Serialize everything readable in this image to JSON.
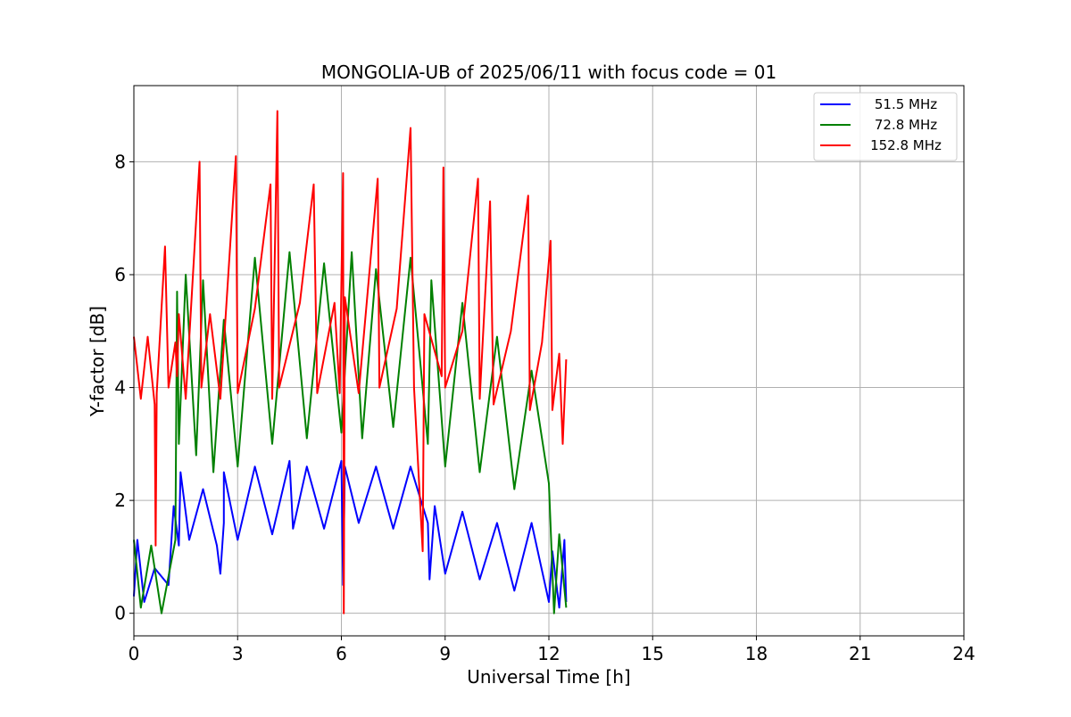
{
  "chart_data": {
    "type": "line",
    "title": "MONGOLIA-UB of 2025/06/11 with focus code = 01",
    "xlabel": "Universal Time [h]",
    "ylabel": "Y-factor [dB]",
    "xlim": [
      0,
      24
    ],
    "ylim": [
      -0.4,
      9.35
    ],
    "xticks": [
      0,
      3,
      6,
      9,
      12,
      15,
      18,
      21,
      24
    ],
    "yticks": [
      0,
      2,
      4,
      6,
      8
    ],
    "grid": true,
    "legend_position": "top-right",
    "series": [
      {
        "name": "51.5 MHz",
        "color": "#0000ff",
        "points": [
          [
            0.0,
            0.3
          ],
          [
            0.1,
            1.3
          ],
          [
            0.3,
            0.2
          ],
          [
            0.6,
            0.8
          ],
          [
            1.0,
            0.5
          ],
          [
            1.15,
            1.9
          ],
          [
            1.3,
            1.2
          ],
          [
            1.35,
            2.5
          ],
          [
            1.6,
            1.3
          ],
          [
            2.0,
            2.2
          ],
          [
            2.4,
            1.2
          ],
          [
            2.5,
            0.7
          ],
          [
            2.6,
            1.6
          ],
          [
            2.6,
            2.5
          ],
          [
            3.0,
            1.3
          ],
          [
            3.5,
            2.6
          ],
          [
            4.0,
            1.4
          ],
          [
            4.5,
            2.7
          ],
          [
            4.6,
            1.5
          ],
          [
            5.0,
            2.6
          ],
          [
            5.5,
            1.5
          ],
          [
            6.0,
            2.7
          ],
          [
            6.05,
            0.5
          ],
          [
            6.1,
            2.6
          ],
          [
            6.5,
            1.6
          ],
          [
            7.0,
            2.6
          ],
          [
            7.5,
            1.5
          ],
          [
            8.0,
            2.6
          ],
          [
            8.5,
            1.6
          ],
          [
            8.55,
            0.6
          ],
          [
            8.7,
            1.9
          ],
          [
            9.0,
            0.7
          ],
          [
            9.5,
            1.8
          ],
          [
            10.0,
            0.6
          ],
          [
            10.5,
            1.6
          ],
          [
            11.0,
            0.4
          ],
          [
            11.5,
            1.6
          ],
          [
            12.0,
            0.2
          ],
          [
            12.1,
            1.1
          ],
          [
            12.3,
            0.1
          ],
          [
            12.45,
            1.3
          ],
          [
            12.5,
            0.2
          ]
        ]
      },
      {
        "name": "72.8 MHz",
        "color": "#008000",
        "points": [
          [
            0.0,
            1.3
          ],
          [
            0.2,
            0.1
          ],
          [
            0.5,
            1.2
          ],
          [
            0.8,
            0.0
          ],
          [
            1.2,
            1.3
          ],
          [
            1.25,
            5.7
          ],
          [
            1.3,
            3.0
          ],
          [
            1.5,
            6.0
          ],
          [
            1.8,
            2.8
          ],
          [
            2.0,
            5.9
          ],
          [
            2.3,
            2.5
          ],
          [
            2.6,
            5.2
          ],
          [
            3.0,
            2.6
          ],
          [
            3.5,
            6.3
          ],
          [
            4.0,
            3.0
          ],
          [
            4.5,
            6.4
          ],
          [
            5.0,
            3.1
          ],
          [
            5.5,
            6.2
          ],
          [
            6.0,
            3.2
          ],
          [
            6.3,
            6.4
          ],
          [
            6.6,
            3.1
          ],
          [
            7.0,
            6.1
          ],
          [
            7.5,
            3.3
          ],
          [
            8.0,
            6.3
          ],
          [
            8.5,
            3.0
          ],
          [
            8.6,
            5.9
          ],
          [
            9.0,
            2.6
          ],
          [
            9.5,
            5.5
          ],
          [
            10.0,
            2.5
          ],
          [
            10.5,
            4.9
          ],
          [
            11.0,
            2.2
          ],
          [
            11.5,
            4.3
          ],
          [
            12.0,
            2.3
          ],
          [
            12.15,
            0.0
          ],
          [
            12.3,
            1.4
          ],
          [
            12.5,
            0.1
          ]
        ]
      },
      {
        "name": "152.8 MHz",
        "color": "#ff0000",
        "points": [
          [
            0.0,
            4.9
          ],
          [
            0.2,
            3.8
          ],
          [
            0.4,
            4.9
          ],
          [
            0.6,
            3.7
          ],
          [
            0.63,
            1.2
          ],
          [
            0.66,
            3.9
          ],
          [
            0.9,
            6.5
          ],
          [
            1.0,
            4.0
          ],
          [
            1.2,
            4.8
          ],
          [
            1.25,
            4.2
          ],
          [
            1.3,
            5.3
          ],
          [
            1.5,
            3.8
          ],
          [
            1.9,
            8.0
          ],
          [
            1.95,
            4.0
          ],
          [
            2.2,
            5.3
          ],
          [
            2.5,
            3.8
          ],
          [
            2.95,
            8.1
          ],
          [
            3.0,
            3.9
          ],
          [
            3.5,
            5.4
          ],
          [
            3.95,
            7.6
          ],
          [
            4.0,
            3.8
          ],
          [
            4.15,
            8.9
          ],
          [
            4.2,
            4.0
          ],
          [
            4.8,
            5.5
          ],
          [
            5.2,
            7.6
          ],
          [
            5.3,
            3.9
          ],
          [
            5.8,
            5.5
          ],
          [
            5.95,
            3.9
          ],
          [
            6.05,
            7.8
          ],
          [
            6.07,
            0.0
          ],
          [
            6.1,
            5.6
          ],
          [
            6.5,
            3.9
          ],
          [
            7.05,
            7.7
          ],
          [
            7.1,
            4.0
          ],
          [
            7.6,
            5.4
          ],
          [
            8.0,
            8.6
          ],
          [
            8.1,
            4.0
          ],
          [
            8.35,
            1.1
          ],
          [
            8.4,
            5.3
          ],
          [
            8.9,
            4.2
          ],
          [
            8.95,
            7.9
          ],
          [
            9.0,
            4.0
          ],
          [
            9.5,
            5.0
          ],
          [
            9.95,
            7.7
          ],
          [
            10.0,
            3.8
          ],
          [
            10.3,
            7.3
          ],
          [
            10.4,
            3.7
          ],
          [
            10.9,
            5.0
          ],
          [
            11.4,
            7.4
          ],
          [
            11.45,
            3.6
          ],
          [
            11.8,
            4.8
          ],
          [
            12.05,
            6.6
          ],
          [
            12.1,
            3.6
          ],
          [
            12.3,
            4.6
          ],
          [
            12.4,
            3.0
          ],
          [
            12.5,
            4.5
          ]
        ]
      }
    ]
  }
}
